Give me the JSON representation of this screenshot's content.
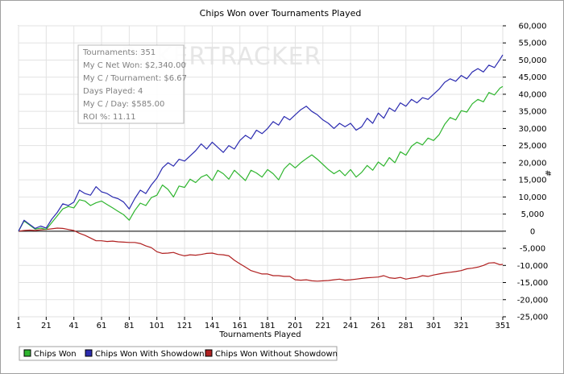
{
  "chart_data": {
    "type": "line",
    "title": "Chips Won over Tournaments Played",
    "xlabel": "Tournaments Played",
    "ylabel": "#",
    "xlim": [
      1,
      351
    ],
    "ylim": [
      -25000,
      60000
    ],
    "grid": true,
    "x_ticks": [
      1,
      21,
      41,
      61,
      81,
      101,
      121,
      141,
      161,
      181,
      201,
      221,
      241,
      261,
      281,
      301,
      321,
      351
    ],
    "x_tick_labels": [
      "1",
      "21",
      "41",
      "61",
      "81",
      "101",
      "121",
      "141",
      "161",
      "181",
      "201",
      "221",
      "241",
      "261",
      "281",
      "301",
      "321",
      "351"
    ],
    "y_ticks": [
      -25000,
      -20000,
      -15000,
      -10000,
      -5000,
      0,
      5000,
      10000,
      15000,
      20000,
      25000,
      30000,
      35000,
      40000,
      45000,
      50000,
      55000,
      60000
    ],
    "y_tick_labels": [
      "-25,000",
      "-20,000",
      "-15,000",
      "-10,000",
      "-5,000",
      "0",
      "5,000",
      "10,000",
      "15,000",
      "20,000",
      "25,000",
      "30,000",
      "35,000",
      "40,000",
      "45,000",
      "50,000",
      "55,000",
      "60,000"
    ],
    "x": [
      1,
      5,
      9,
      13,
      17,
      21,
      25,
      29,
      33,
      37,
      41,
      45,
      49,
      53,
      57,
      61,
      65,
      69,
      73,
      77,
      81,
      85,
      89,
      93,
      97,
      101,
      105,
      109,
      113,
      117,
      121,
      125,
      129,
      133,
      137,
      141,
      145,
      149,
      153,
      157,
      161,
      165,
      169,
      173,
      177,
      181,
      185,
      189,
      193,
      197,
      201,
      205,
      209,
      213,
      217,
      221,
      225,
      229,
      233,
      237,
      241,
      245,
      249,
      253,
      257,
      261,
      265,
      269,
      273,
      277,
      281,
      285,
      289,
      293,
      297,
      301,
      305,
      309,
      313,
      317,
      321,
      325,
      329,
      333,
      337,
      341,
      345,
      349,
      351
    ],
    "series": [
      {
        "name": "Chips Won",
        "color": "#2fb52f",
        "values": [
          0,
          3000,
          1800,
          600,
          900,
          500,
          2500,
          4500,
          6500,
          7200,
          6800,
          9200,
          8800,
          7500,
          8300,
          8800,
          7800,
          6800,
          5800,
          4800,
          3200,
          6000,
          8200,
          7500,
          9800,
          10500,
          13500,
          12200,
          10000,
          13200,
          12800,
          15200,
          14200,
          15800,
          16500,
          14800,
          17800,
          16800,
          15200,
          17800,
          16300,
          14800,
          17800,
          17000,
          15800,
          18000,
          16800,
          15000,
          18200,
          19800,
          18500,
          20000,
          21200,
          22300,
          21000,
          19500,
          18000,
          16800,
          17800,
          16200,
          18000,
          15800,
          17200,
          19200,
          17800,
          20200,
          19000,
          21500,
          20000,
          23200,
          22200,
          24800,
          26000,
          25200,
          27200,
          26500,
          28200,
          31200,
          33200,
          32500,
          35200,
          34800,
          37200,
          38500,
          37800,
          40500,
          39800,
          41800,
          42300
        ]
      },
      {
        "name": "Chips Won With Showdown",
        "color": "#2b2bb0",
        "values": [
          0,
          3200,
          2000,
          800,
          1500,
          900,
          3500,
          5500,
          8000,
          7500,
          8500,
          12000,
          11000,
          10500,
          13000,
          11500,
          11000,
          10000,
          9500,
          8500,
          6500,
          9500,
          12000,
          11000,
          13500,
          15500,
          18500,
          20000,
          19000,
          21000,
          20500,
          22000,
          23500,
          25500,
          24000,
          26000,
          24500,
          23000,
          25000,
          24000,
          26500,
          28000,
          27000,
          29500,
          28500,
          30000,
          32000,
          31000,
          33500,
          32500,
          34000,
          35500,
          36500,
          35000,
          34000,
          32500,
          31500,
          30000,
          31500,
          30500,
          31500,
          29500,
          30500,
          33000,
          31500,
          34500,
          33000,
          36000,
          35000,
          37500,
          36500,
          38500,
          37500,
          39000,
          38500,
          40000,
          41500,
          43500,
          44500,
          43800,
          45500,
          44500,
          46500,
          47500,
          46500,
          48500,
          47800,
          50200,
          51500
        ]
      },
      {
        "name": "Chips Won Without Showdown",
        "color": "#b02020",
        "values": [
          0,
          200,
          300,
          200,
          400,
          500,
          700,
          900,
          800,
          500,
          200,
          -600,
          -1200,
          -2000,
          -2800,
          -2800,
          -3000,
          -2900,
          -3100,
          -3200,
          -3300,
          -3300,
          -3600,
          -4300,
          -4800,
          -6000,
          -6500,
          -6400,
          -6200,
          -6800,
          -7200,
          -6900,
          -7000,
          -6800,
          -6500,
          -6400,
          -6800,
          -6900,
          -7200,
          -8500,
          -9500,
          -10500,
          -11500,
          -12000,
          -12500,
          -12500,
          -13000,
          -13000,
          -13200,
          -13200,
          -14200,
          -14300,
          -14200,
          -14500,
          -14600,
          -14500,
          -14400,
          -14200,
          -14000,
          -14300,
          -14200,
          -14000,
          -13800,
          -13600,
          -13500,
          -13400,
          -13000,
          -13600,
          -13800,
          -13500,
          -14000,
          -13700,
          -13500,
          -13000,
          -13200,
          -12800,
          -12500,
          -12200,
          -12000,
          -11800,
          -11500,
          -11000,
          -10800,
          -10500,
          -10000,
          -9300,
          -9200,
          -9800,
          -9700
        ]
      }
    ]
  },
  "stats_box": {
    "lines": [
      "Tournaments: 351",
      "My C Net Won: $2,340.00",
      "My C / Tournament: $6.67",
      "Days Played: 4",
      "My C / Day: $585.00",
      "ROI %: 11.11"
    ]
  },
  "watermark": "POKERTRACKER",
  "colors": {
    "chips_won": "#2fb52f",
    "chips_won_with_showdown": "#2b2bb0",
    "chips_won_without_showdown": "#b02020",
    "grid": "#e2e2e2",
    "zero_line": "#000000"
  }
}
